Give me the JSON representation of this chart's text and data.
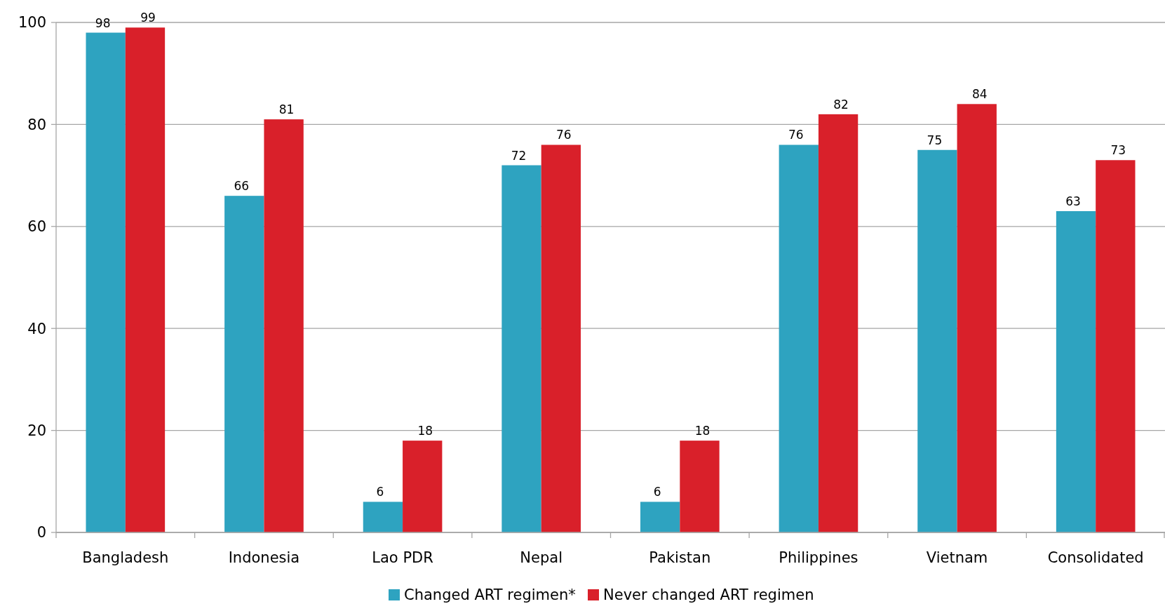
{
  "chart_data": {
    "type": "bar",
    "categories": [
      "Bangladesh",
      "Indonesia",
      "Lao PDR",
      "Nepal",
      "Pakistan",
      "Philippines",
      "Vietnam",
      "Consolidated"
    ],
    "series": [
      {
        "name": "Changed ART regimen*",
        "color": "#2ea3c0",
        "values": [
          98,
          66,
          6,
          72,
          6,
          76,
          75,
          63
        ]
      },
      {
        "name": "Never changed ART regimen",
        "color": "#d9202a",
        "values": [
          99,
          81,
          18,
          76,
          18,
          82,
          84,
          73
        ]
      }
    ],
    "ylim": [
      0,
      100
    ],
    "yticks": [
      0,
      20,
      40,
      60,
      80,
      100
    ],
    "grid": "y",
    "legend": "bottom",
    "data_labels": true
  }
}
